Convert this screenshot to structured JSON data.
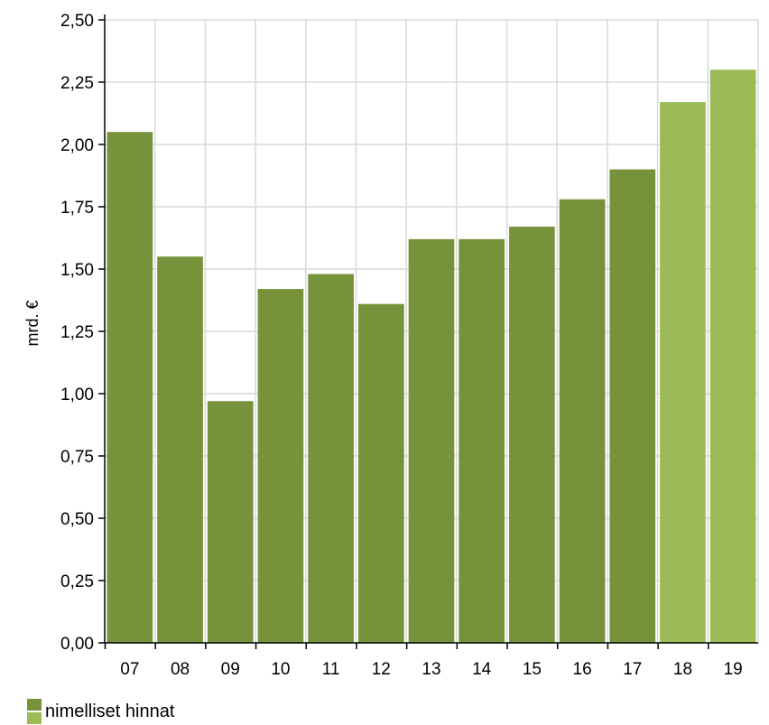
{
  "chart_data": {
    "type": "bar",
    "categories": [
      "07",
      "08",
      "09",
      "10",
      "11",
      "12",
      "13",
      "14",
      "15",
      "16",
      "17",
      "18",
      "19"
    ],
    "values": [
      2.05,
      1.55,
      0.97,
      1.42,
      1.48,
      1.36,
      1.62,
      1.62,
      1.67,
      1.78,
      1.9,
      2.17,
      2.3
    ],
    "forecast_from_index": 11,
    "ylabel": "mrd. €",
    "ylim": [
      0,
      2.5
    ],
    "yticks": [
      "0,00",
      "0,25",
      "0,50",
      "0,75",
      "1,00",
      "1,25",
      "1,50",
      "1,75",
      "2,00",
      "2,25",
      "2,50"
    ],
    "grid": true,
    "legend": [
      {
        "label": "nimelliset hinnat",
        "placement": "bottom-left"
      }
    ],
    "colors": {
      "bar": "#76933c",
      "forecast": "#9bbb59",
      "grid": "#d9d9d9",
      "axis": "#000000"
    }
  }
}
